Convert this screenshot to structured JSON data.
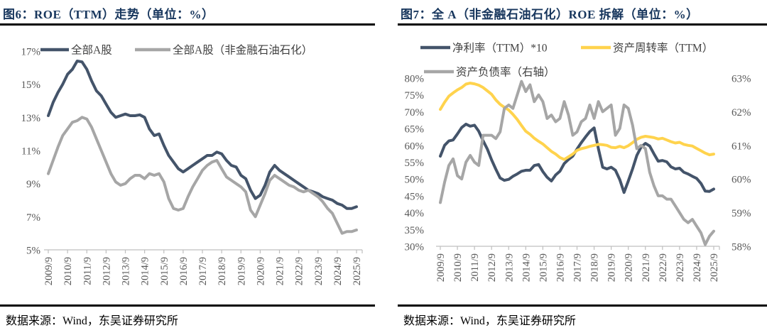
{
  "page": {
    "background": "#FFFFFF"
  },
  "colors": {
    "title": "#17365D",
    "rule": "#000000",
    "axis_line": "#BFBFBF",
    "axis_text": "#595959",
    "legend_text": "#404040",
    "navy": "#44546A",
    "gray": "#A6A6A6",
    "yellow": "#FFD34D"
  },
  "figures": [
    {
      "title": "图6：ROE（TTM）走势（单位：%）",
      "source_note": "数据来源：Wind，东吴证券研究所"
    },
    {
      "title": "图7：全 A（非金融石油石化）ROE 拆解（单位：%）",
      "source_note": "数据来源：Wind，东吴证券研究所"
    }
  ],
  "chart_data": [
    {
      "type": "line",
      "title": "图6：ROE（TTM）走势（单位：%）",
      "x_frequency": "quarterly",
      "x_range": [
        "2009/9",
        "2025/9"
      ],
      "x_tick_labels": [
        "2009/9",
        "2010/9",
        "2011/9",
        "2012/9",
        "2013/9",
        "2014/9",
        "2015/9",
        "2016/9",
        "2017/9",
        "2018/9",
        "2019/9",
        "2020/9",
        "2021/9",
        "2022/9",
        "2023/9",
        "2024/9",
        "2025/9"
      ],
      "points_per_tick": 4,
      "grid": false,
      "legend_position": "top",
      "axes": {
        "left": {
          "min": 5,
          "max": 17,
          "tick_step": 2,
          "tick_labels": [
            "17%",
            "15%",
            "13%",
            "11%",
            "9%",
            "7%",
            "5%"
          ]
        }
      },
      "series": [
        {
          "name": "全部A股",
          "color": "#44546A",
          "axis": "left",
          "values": [
            13.1,
            13.9,
            14.5,
            15.0,
            15.6,
            15.9,
            16.4,
            16.35,
            15.9,
            15.2,
            14.6,
            14.3,
            13.8,
            13.3,
            13.0,
            13.1,
            13.2,
            13.1,
            13.1,
            13.15,
            13.0,
            12.3,
            11.9,
            12.0,
            11.3,
            10.7,
            10.3,
            9.9,
            9.7,
            9.9,
            10.1,
            10.3,
            10.5,
            10.7,
            10.7,
            10.9,
            10.8,
            10.4,
            10.1,
            10.0,
            9.5,
            9.3,
            8.6,
            8.1,
            8.3,
            8.9,
            9.7,
            10.1,
            9.8,
            9.6,
            9.4,
            9.2,
            9.0,
            8.8,
            8.6,
            8.5,
            8.4,
            8.2,
            8.1,
            8.0,
            7.8,
            7.7,
            7.5,
            7.5,
            7.6
          ]
        },
        {
          "name": "全部A股（非金融石油石化）",
          "color": "#A6A6A6",
          "axis": "left",
          "values": [
            9.6,
            10.4,
            11.2,
            11.9,
            12.3,
            12.7,
            12.8,
            13.0,
            12.9,
            12.4,
            11.7,
            11.0,
            10.3,
            9.6,
            9.1,
            8.9,
            9.0,
            9.3,
            9.5,
            9.5,
            9.3,
            9.6,
            9.5,
            9.6,
            9.1,
            8.1,
            7.5,
            7.4,
            7.5,
            8.2,
            8.8,
            9.3,
            9.8,
            10.1,
            10.3,
            10.4,
            9.9,
            9.4,
            9.2,
            9.0,
            8.8,
            8.5,
            7.4,
            7.0,
            7.7,
            8.4,
            9.2,
            9.5,
            9.3,
            9.1,
            8.9,
            8.8,
            8.6,
            8.5,
            8.6,
            8.4,
            8.2,
            7.9,
            7.5,
            7.2,
            6.6,
            6.0,
            6.1,
            6.1,
            6.2
          ]
        }
      ]
    },
    {
      "type": "line",
      "title": "图7：全 A（非金融石油石化）ROE 拆解（单位：%）",
      "x_frequency": "quarterly",
      "x_range": [
        "2009/9",
        "2025/9"
      ],
      "x_tick_labels": [
        "2009/9",
        "2010/9",
        "2011/9",
        "2012/9",
        "2013/9",
        "2014/9",
        "2015/9",
        "2016/9",
        "2017/9",
        "2018/9",
        "2019/9",
        "2020/9",
        "2021/9",
        "2022/9",
        "2023/9",
        "2024/9",
        "2025/9"
      ],
      "points_per_tick": 4,
      "grid": false,
      "legend_position": "top",
      "axes": {
        "left": {
          "min": 30,
          "max": 80,
          "tick_step": 5,
          "tick_labels": [
            "80%",
            "75%",
            "70%",
            "65%",
            "60%",
            "55%",
            "50%",
            "45%",
            "40%",
            "35%",
            "30%"
          ]
        },
        "right": {
          "min": 58,
          "max": 63,
          "tick_step": 1,
          "tick_labels": [
            "63%",
            "62%",
            "61%",
            "60%",
            "59%",
            "58%"
          ]
        }
      },
      "series": [
        {
          "name": "净利率（TTM）*10",
          "color": "#44546A",
          "axis": "left",
          "values": [
            56.8,
            60.0,
            61.3,
            61.6,
            63.4,
            65.3,
            66.3,
            65.7,
            66.0,
            64.2,
            61.4,
            58.9,
            55.7,
            52.9,
            50.3,
            49.6,
            49.9,
            50.8,
            51.5,
            52.3,
            52.6,
            52.6,
            54.0,
            54.3,
            52.2,
            50.5,
            49.4,
            51.2,
            52.3,
            54.6,
            55.8,
            56.8,
            58.9,
            60.8,
            62.5,
            64.1,
            65.2,
            59.0,
            53.5,
            53.0,
            53.5,
            52.6,
            49.8,
            46.0,
            49.4,
            53.0,
            57.0,
            59.5,
            60.6,
            59.8,
            57.5,
            55.3,
            55.5,
            55.1,
            53.6,
            53.0,
            53.2,
            52.0,
            51.5,
            50.8,
            50.2,
            48.7,
            46.4,
            46.3,
            47.0
          ]
        },
        {
          "name": "资产周转率（TTM）",
          "color": "#FFD34D",
          "axis": "left",
          "values": [
            70.7,
            72.8,
            74.6,
            75.6,
            76.5,
            77.2,
            78.2,
            78.5,
            78.3,
            77.9,
            77.2,
            76.2,
            75.2,
            73.5,
            72.2,
            71.3,
            70.5,
            69.2,
            67.7,
            65.9,
            64.2,
            63.3,
            62.1,
            61.2,
            60.4,
            59.3,
            58.2,
            57.4,
            56.4,
            55.8,
            56.6,
            57.4,
            58.5,
            59.0,
            59.3,
            59.7,
            60.0,
            60.3,
            60.2,
            60.0,
            59.4,
            59.3,
            59.7,
            59.3,
            59.9,
            60.8,
            61.8,
            62.4,
            62.7,
            62.5,
            62.3,
            61.9,
            62.1,
            61.6,
            61.1,
            60.7,
            60.9,
            60.3,
            60.0,
            59.8,
            59.1,
            58.4,
            57.7,
            57.2,
            57.4
          ]
        },
        {
          "name": "资产负债率（右轴）",
          "color": "#A6A6A6",
          "axis": "right",
          "values": [
            59.3,
            59.9,
            60.4,
            60.6,
            60.1,
            60.0,
            60.5,
            60.7,
            60.5,
            60.4,
            61.3,
            61.3,
            61.3,
            61.2,
            61.4,
            62.1,
            62.2,
            62.1,
            62.5,
            62.9,
            62.6,
            62.8,
            62.3,
            62.5,
            62.3,
            61.8,
            61.9,
            61.7,
            61.8,
            62.3,
            61.9,
            61.3,
            61.4,
            61.7,
            61.8,
            62.2,
            61.8,
            62.3,
            62.0,
            62.1,
            62.2,
            61.3,
            61.5,
            62.2,
            62.1,
            61.6,
            60.9,
            61.0,
            60.9,
            60.2,
            59.8,
            59.5,
            59.5,
            59.4,
            59.4,
            59.2,
            59.0,
            58.8,
            58.7,
            58.8,
            58.6,
            58.4,
            58.05,
            58.3,
            58.45
          ]
        }
      ]
    }
  ]
}
